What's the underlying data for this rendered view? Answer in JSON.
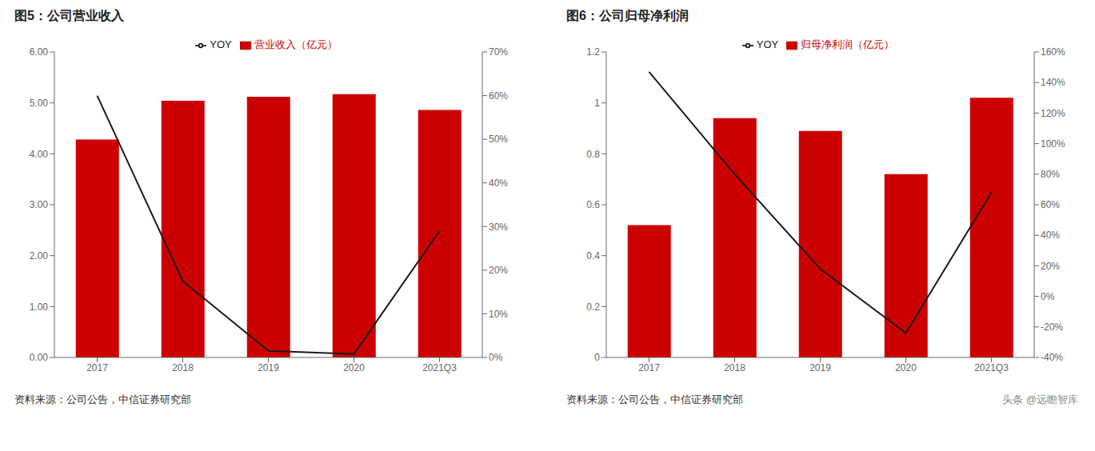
{
  "chart_data": [
    {
      "type": "bar",
      "title": "图5：公司营业收入",
      "categories": [
        "2017",
        "2018",
        "2019",
        "2020",
        "2021Q3"
      ],
      "series": [
        {
          "name": "营业收入（亿元）",
          "type": "bar",
          "color": "#CC0000",
          "values": [
            4.28,
            5.04,
            5.12,
            5.17,
            4.86
          ]
        },
        {
          "name": "YOY",
          "type": "line",
          "color": "#1a1a1a",
          "axis": "y2",
          "values": [
            0.6,
            0.175,
            0.015,
            0.008,
            0.29
          ]
        }
      ],
      "ylim": [
        0,
        6.0
      ],
      "yticks": [
        {
          "value": 0.0,
          "label": "0.00"
        },
        {
          "value": 1.0,
          "label": "1.00"
        },
        {
          "value": 2.0,
          "label": "2.00"
        },
        {
          "value": 3.0,
          "label": "3.00"
        },
        {
          "value": 4.0,
          "label": "4.00"
        },
        {
          "value": 5.0,
          "label": "5.00"
        },
        {
          "value": 6.0,
          "label": "6.00"
        }
      ],
      "y2lim": [
        0.0,
        0.7
      ],
      "y2ticks": [
        {
          "value": 0.0,
          "label": "0%"
        },
        {
          "value": 0.1,
          "label": "10%"
        },
        {
          "value": 0.2,
          "label": "20%"
        },
        {
          "value": 0.3,
          "label": "30%"
        },
        {
          "value": 0.4,
          "label": "40%"
        },
        {
          "value": 0.5,
          "label": "50%"
        },
        {
          "value": 0.6,
          "label": "60%"
        },
        {
          "value": 0.7,
          "label": "70%"
        }
      ],
      "grid": false,
      "legend": "top",
      "annotations": [
        "资料来源：公司公告，中信证券研究部"
      ]
    },
    {
      "type": "bar",
      "title": "图6：公司归母净利润",
      "categories": [
        "2017",
        "2018",
        "2019",
        "2020",
        "2021Q3"
      ],
      "series": [
        {
          "name": "归母净利润（亿元）",
          "type": "bar",
          "color": "#CC0000",
          "values": [
            0.52,
            0.94,
            0.89,
            0.72,
            1.02
          ]
        },
        {
          "name": "YOY",
          "type": "line",
          "color": "#1a1a1a",
          "axis": "y2",
          "values": [
            1.47,
            0.8,
            0.18,
            -0.24,
            0.68
          ]
        }
      ],
      "ylim": [
        0,
        1.2
      ],
      "yticks": [
        0,
        0.2,
        0.4,
        0.6,
        0.8,
        1,
        1.2
      ],
      "y2lim": [
        -0.4,
        1.6
      ],
      "y2ticks": [
        {
          "value": -0.4,
          "label": "-40%"
        },
        {
          "value": -0.2,
          "label": "-20%"
        },
        {
          "value": 0.0,
          "label": "0%"
        },
        {
          "value": 0.2,
          "label": "20%"
        },
        {
          "value": 0.4,
          "label": "40%"
        },
        {
          "value": 0.6,
          "label": "60%"
        },
        {
          "value": 0.8,
          "label": "80%"
        },
        {
          "value": 1.0,
          "label": "100%"
        },
        {
          "value": 1.2,
          "label": "120%"
        },
        {
          "value": 1.4,
          "label": "140%"
        },
        {
          "value": 1.6,
          "label": "160%"
        }
      ],
      "grid": false,
      "legend": "top",
      "annotations": [
        "资料来源：公司公告，中信证券研究部",
        "头条 @远瞻智库"
      ]
    }
  ]
}
